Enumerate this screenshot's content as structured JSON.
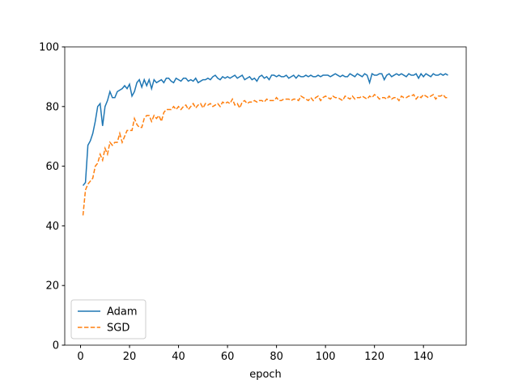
{
  "chart_data": {
    "type": "line",
    "xlabel": "epoch",
    "x": [
      1,
      2,
      3,
      4,
      5,
      6,
      7,
      8,
      9,
      10,
      11,
      12,
      13,
      14,
      15,
      16,
      17,
      18,
      19,
      20,
      21,
      22,
      23,
      24,
      25,
      26,
      27,
      28,
      29,
      30,
      31,
      32,
      33,
      34,
      35,
      36,
      37,
      38,
      39,
      40,
      41,
      42,
      43,
      44,
      45,
      46,
      47,
      48,
      49,
      50,
      51,
      52,
      53,
      54,
      55,
      56,
      57,
      58,
      59,
      60,
      61,
      62,
      63,
      64,
      65,
      66,
      67,
      68,
      69,
      70,
      71,
      72,
      73,
      74,
      75,
      76,
      77,
      78,
      79,
      80,
      81,
      82,
      83,
      84,
      85,
      86,
      87,
      88,
      89,
      90,
      91,
      92,
      93,
      94,
      95,
      96,
      97,
      98,
      99,
      100,
      101,
      102,
      103,
      104,
      105,
      106,
      107,
      108,
      109,
      110,
      111,
      112,
      113,
      114,
      115,
      116,
      117,
      118,
      119,
      120,
      121,
      122,
      123,
      124,
      125,
      126,
      127,
      128,
      129,
      130,
      131,
      132,
      133,
      134,
      135,
      136,
      137,
      138,
      139,
      140,
      141,
      142,
      143,
      144,
      145,
      146,
      147,
      148,
      149,
      150
    ],
    "series": [
      {
        "name": "Adam",
        "color": "#1f77b4",
        "linestyle": "solid",
        "values": [
          53.5,
          54.5,
          67,
          68.5,
          71,
          75,
          80,
          81,
          73.5,
          80,
          82,
          85,
          83,
          83,
          85,
          85.5,
          86,
          87,
          86,
          87.5,
          83.5,
          85,
          88,
          89,
          86.5,
          89,
          87,
          89,
          86,
          89,
          88,
          88.5,
          89,
          88,
          89.5,
          89.5,
          88.5,
          88,
          89.5,
          89,
          88.5,
          89.5,
          89.5,
          88.5,
          89,
          88.5,
          89.5,
          88,
          88.5,
          89,
          89,
          89.5,
          89,
          90,
          90.5,
          89.5,
          89,
          90,
          89.5,
          90,
          89.5,
          90,
          90.5,
          89.5,
          90,
          90.5,
          89,
          89.5,
          90,
          89,
          89.5,
          88.5,
          90,
          90.5,
          89.5,
          90,
          89,
          90.5,
          90.5,
          90,
          90.5,
          90,
          90,
          90.5,
          89.5,
          90,
          90.5,
          89.5,
          90.5,
          90,
          90,
          90.5,
          90,
          90.5,
          90,
          90,
          90.5,
          90,
          90.5,
          90.5,
          90.5,
          90,
          90.5,
          91,
          90.5,
          90,
          90.5,
          90,
          90,
          91,
          90.5,
          90,
          91,
          90.5,
          90,
          91,
          90.5,
          88,
          91,
          90.5,
          90.5,
          91,
          91,
          89,
          90.5,
          91,
          90,
          90.5,
          91,
          90.5,
          91,
          90.5,
          90,
          91,
          90.5,
          90.5,
          91,
          89.5,
          91,
          90,
          91,
          90.5,
          90,
          91,
          90.5,
          90.5,
          91,
          90.5,
          91,
          90.5
        ]
      },
      {
        "name": "SGD",
        "color": "#ff7f0e",
        "linestyle": "dashed",
        "values": [
          43.5,
          52,
          54,
          55,
          56,
          60,
          61,
          64,
          62,
          66,
          64,
          68,
          67,
          68,
          68,
          71,
          68,
          70,
          72,
          72,
          72,
          76,
          74,
          73,
          73,
          76,
          77,
          77,
          75,
          77,
          76,
          77,
          75,
          78,
          79,
          79,
          79,
          80,
          79,
          80,
          79,
          80,
          80.5,
          79,
          80,
          81,
          79.5,
          80.5,
          81,
          79.5,
          81,
          80.5,
          81,
          80,
          80.5,
          81,
          80,
          81.5,
          81,
          81.5,
          81,
          82.5,
          80.5,
          81,
          79.5,
          81.5,
          82,
          81,
          81.5,
          81.5,
          82,
          81.5,
          82,
          82,
          81.5,
          82.5,
          82,
          82,
          82,
          83,
          82,
          82,
          82.5,
          82.5,
          82.5,
          82,
          82.5,
          82.5,
          82,
          83.5,
          83,
          82.5,
          82,
          83,
          82,
          83,
          83.5,
          82,
          83,
          83.5,
          83,
          82.5,
          83.5,
          83,
          83,
          82.5,
          82,
          83.5,
          83,
          82.5,
          83.5,
          82.5,
          83,
          83,
          83.5,
          83,
          82.5,
          83.5,
          83,
          84,
          83.5,
          82.5,
          83,
          83,
          82.5,
          83.5,
          82.5,
          83,
          83,
          82,
          83.5,
          83,
          83,
          83.5,
          83.5,
          84,
          82.5,
          83.5,
          83,
          84,
          83.5,
          83,
          83.5,
          84,
          82.5,
          83.5,
          83.5,
          84,
          83,
          83
        ]
      }
    ],
    "xlim": [
      -6.45,
      157.45
    ],
    "xticks": [
      0,
      20,
      40,
      60,
      80,
      100,
      120,
      140
    ],
    "ylim": [
      0,
      100
    ],
    "yticks": [
      0,
      20,
      40,
      60,
      80,
      100
    ],
    "grid": false,
    "legend": "lower left"
  }
}
